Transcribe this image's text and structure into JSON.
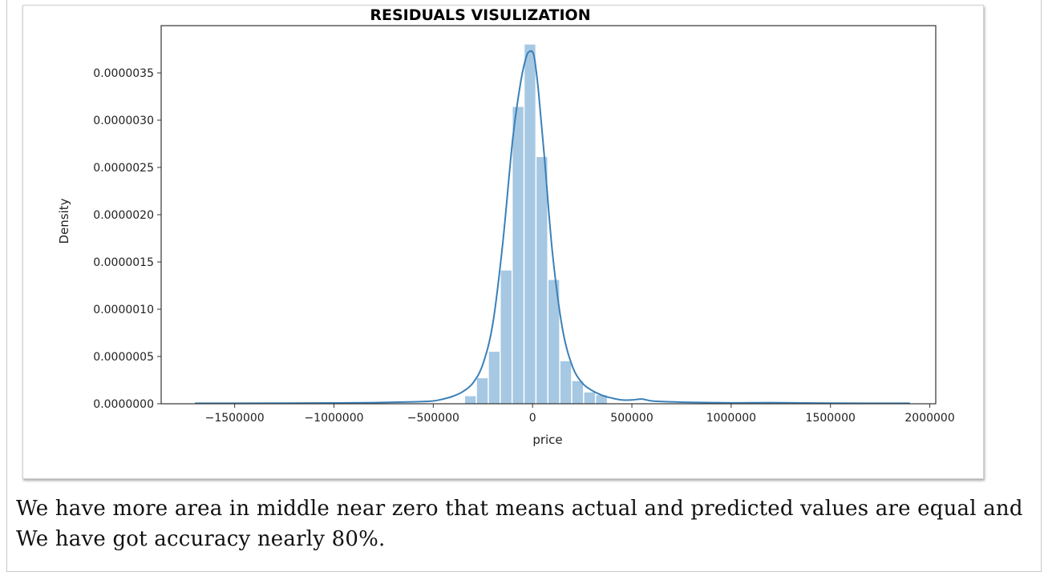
{
  "chart_data": {
    "type": "histogram",
    "title": "RESIDUALS VISULIZATION",
    "xlabel": "price",
    "ylabel": "Density",
    "xlim": [
      -1870000,
      2030000
    ],
    "ylim": [
      0,
      4e-06
    ],
    "xticks": [
      -1500000,
      -1000000,
      -500000,
      0,
      500000,
      1000000,
      1500000,
      2000000
    ],
    "xtick_labels": [
      "−1500000",
      "−1000000",
      "−500000",
      "0",
      "500000",
      "1000000",
      "1500000",
      "2000000"
    ],
    "yticks": [
      0,
      5e-07,
      1e-06,
      1.5e-06,
      2e-06,
      2.5e-06,
      3e-06,
      3.5e-06
    ],
    "ytick_labels": [
      "0.0000000",
      "0.0000005",
      "0.0000010",
      "0.0000015",
      "0.0000020",
      "0.0000025",
      "0.0000030",
      "0.0000035"
    ],
    "grid": false,
    "bar_color": "#a6c8e3",
    "line_color": "#3a80b8",
    "bins": [
      {
        "x0": -340000,
        "x1": -280000,
        "density": 8e-08
      },
      {
        "x0": -280000,
        "x1": -220000,
        "density": 2.7e-07
      },
      {
        "x0": -220000,
        "x1": -160000,
        "density": 5.5e-07
      },
      {
        "x0": -160000,
        "x1": -100000,
        "density": 1.41e-06
      },
      {
        "x0": -100000,
        "x1": -40000,
        "density": 3.14e-06
      },
      {
        "x0": -40000,
        "x1": 20000,
        "density": 3.8e-06
      },
      {
        "x0": 20000,
        "x1": 80000,
        "density": 2.61e-06
      },
      {
        "x0": 80000,
        "x1": 140000,
        "density": 1.31e-06
      },
      {
        "x0": 140000,
        "x1": 200000,
        "density": 4.5e-07
      },
      {
        "x0": 200000,
        "x1": 260000,
        "density": 2.4e-07
      },
      {
        "x0": 260000,
        "x1": 320000,
        "density": 1.2e-07
      },
      {
        "x0": 320000,
        "x1": 380000,
        "density": 9e-08
      }
    ],
    "kde": {
      "x": [
        -1700000,
        -1500000,
        -1000000,
        -800000,
        -600000,
        -500000,
        -450000,
        -400000,
        -350000,
        -300000,
        -250000,
        -200000,
        -150000,
        -100000,
        -60000,
        -30000,
        -10000,
        0,
        10000,
        30000,
        60000,
        100000,
        150000,
        200000,
        250000,
        300000,
        350000,
        400000,
        450000,
        500000,
        550000,
        600000,
        700000,
        800000,
        1000000,
        1200000,
        1500000,
        1900000
      ],
      "y": [
        5e-09,
        5e-09,
        8e-09,
        1.2e-08,
        2e-08,
        3e-08,
        5e-08,
        8e-08,
        1.3e-07,
        2.2e-07,
        4.2e-07,
        8.5e-07,
        1.7e-06,
        2.8e-06,
        3.4e-06,
        3.68e-06,
        3.73e-06,
        3.72e-06,
        3.65e-06,
        3.3e-06,
        2.6e-06,
        1.6e-06,
        8e-07,
        4e-07,
        2.2e-07,
        1.4e-07,
        9e-08,
        6e-08,
        4e-08,
        4e-08,
        5e-08,
        3e-08,
        2e-08,
        1.5e-08,
        1e-08,
        1.2e-08,
        6e-09,
        5e-09
      ]
    }
  },
  "caption": "We have more area in middle near zero that means actual and predicted values are equal and We have got accuracy nearly 80%."
}
